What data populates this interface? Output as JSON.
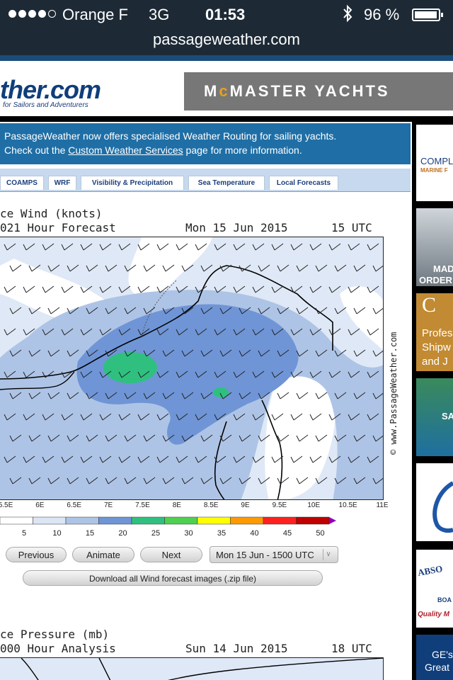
{
  "status_bar": {
    "carrier": "Orange F",
    "network": "3G",
    "time": "01:53",
    "battery": "96 %",
    "signal_bars": 4,
    "battery_level": 0.96
  },
  "url": "passageweather.com",
  "header": {
    "logo_text": "ther.com",
    "logo_tagline": "for Sailors and Adventurers",
    "banner_text_pre": "M",
    "banner_text_c": "c",
    "banner_text_post": "MASTER YACHTS"
  },
  "notice": {
    "line1": "PassageWeather now offers specialised Weather Routing for sailing yachts.",
    "line2_pre": "Check out the ",
    "line2_link": "Custom Weather Services",
    "line2_post": " page for more information."
  },
  "tabs": [
    "COAMPS",
    "WRF",
    "Visibility & Precipitation",
    "Sea Temperature",
    "Local Forecasts"
  ],
  "forecast_plot": {
    "title_line1": "ce Wind (knots)",
    "title_line2_left": "021 Hour Forecast",
    "title_line2_date": "Mon 15 Jun 2015",
    "title_line2_time": "15 UTC",
    "copyright": "© www.PassageWeather.com",
    "x_ticks": [
      "5.5E",
      "6E",
      "6.5E",
      "7E",
      "7.5E",
      "8E",
      "8.5E",
      "9E",
      "9.5E",
      "10E",
      "10.5E",
      "11E"
    ],
    "colorbar_ticks": [
      "5",
      "10",
      "15",
      "20",
      "25",
      "30",
      "35",
      "40",
      "45",
      "50"
    ],
    "colorbar_colors": [
      "#ffffff",
      "#dbe5f4",
      "#aec4e6",
      "#6f95d6",
      "#2fc080",
      "#4fd050",
      "#ffff00",
      "#ff9a00",
      "#ff2020",
      "#c00000",
      "#9000c0"
    ]
  },
  "controls": {
    "previous": "Previous",
    "animate": "Animate",
    "next": "Next",
    "selected_time": "Mon 15 Jun - 1500 UTC",
    "download": "Download all Wind forecast images (.zip file)"
  },
  "pressure_plot": {
    "title_line1": "ce Pressure (mb)",
    "title_line2_left": "000 Hour Analysis",
    "title_line2_date": "Sun 14 Jun 2015",
    "title_line2_time": "18 UTC"
  },
  "sidebar_ads": {
    "ad1_line1": "COMPL",
    "ad1_line2": "MARINE F",
    "ad2_line1": "MAD",
    "ad2_line2": "ORDER",
    "ad3_logo": "C",
    "ad3_line1": "Profes",
    "ad3_line2": "Shipw",
    "ad3_line3": "and J",
    "ad4_text": "SA",
    "ad6_line1": "ABSO",
    "ad6_line2": "BOA",
    "ad6_line3": "Quality M",
    "ad7_line1": "GE's",
    "ad7_line2": "Great"
  }
}
